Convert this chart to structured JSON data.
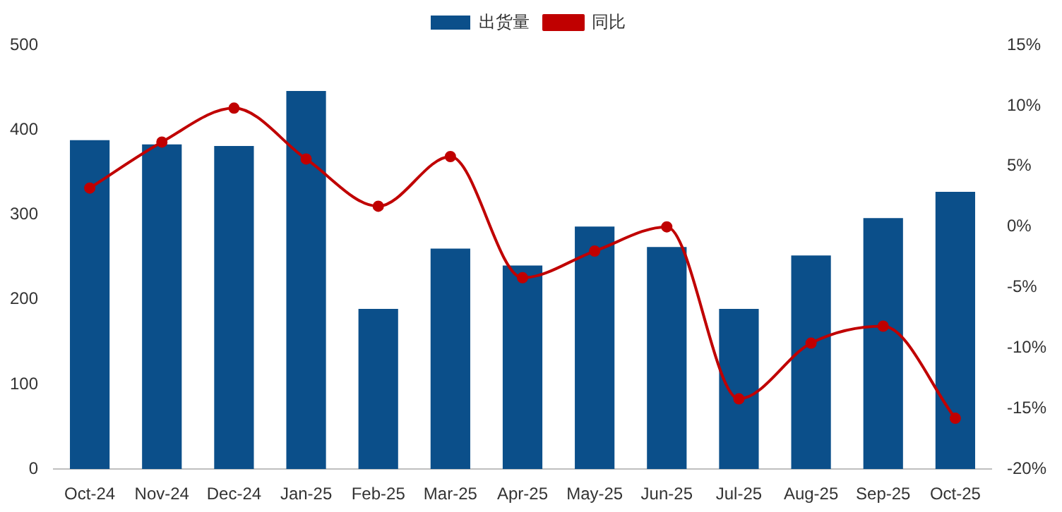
{
  "chart_data": {
    "type": "bar",
    "categories": [
      "Oct-24",
      "Nov-24",
      "Dec-24",
      "Jan-25",
      "Feb-25",
      "Mar-25",
      "Apr-25",
      "May-25",
      "Jun-25",
      "Jul-25",
      "Aug-25",
      "Sep-25",
      "Oct-25"
    ],
    "series": [
      {
        "name": "出货量",
        "color": "#0b4f8a",
        "values": [
          388,
          383,
          381,
          446,
          189,
          260,
          240,
          286,
          262,
          189,
          252,
          296,
          327
        ]
      },
      {
        "name": "同比",
        "type": "line",
        "axis": "y2",
        "color": "#c00000",
        "marker": "circle",
        "values": [
          3.2,
          7.0,
          9.8,
          5.6,
          1.7,
          5.8,
          -4.2,
          -2.0,
          0.0,
          -14.2,
          -9.6,
          -8.2,
          -15.8
        ]
      }
    ],
    "ylim": [
      0,
      500
    ],
    "yticks": [
      0,
      100,
      200,
      300,
      400,
      500
    ],
    "y2lim": [
      -20,
      15
    ],
    "y2ticks": [
      {
        "value": -20,
        "label": "-20%"
      },
      {
        "value": -15,
        "label": "-15%"
      },
      {
        "value": -10,
        "label": "-10%"
      },
      {
        "value": -5,
        "label": "-5%"
      },
      {
        "value": 0,
        "label": "0%"
      },
      {
        "value": 5,
        "label": "5%"
      },
      {
        "value": 10,
        "label": "10%"
      },
      {
        "value": 15,
        "label": "15%"
      }
    ],
    "grid": false,
    "legend": "top"
  }
}
